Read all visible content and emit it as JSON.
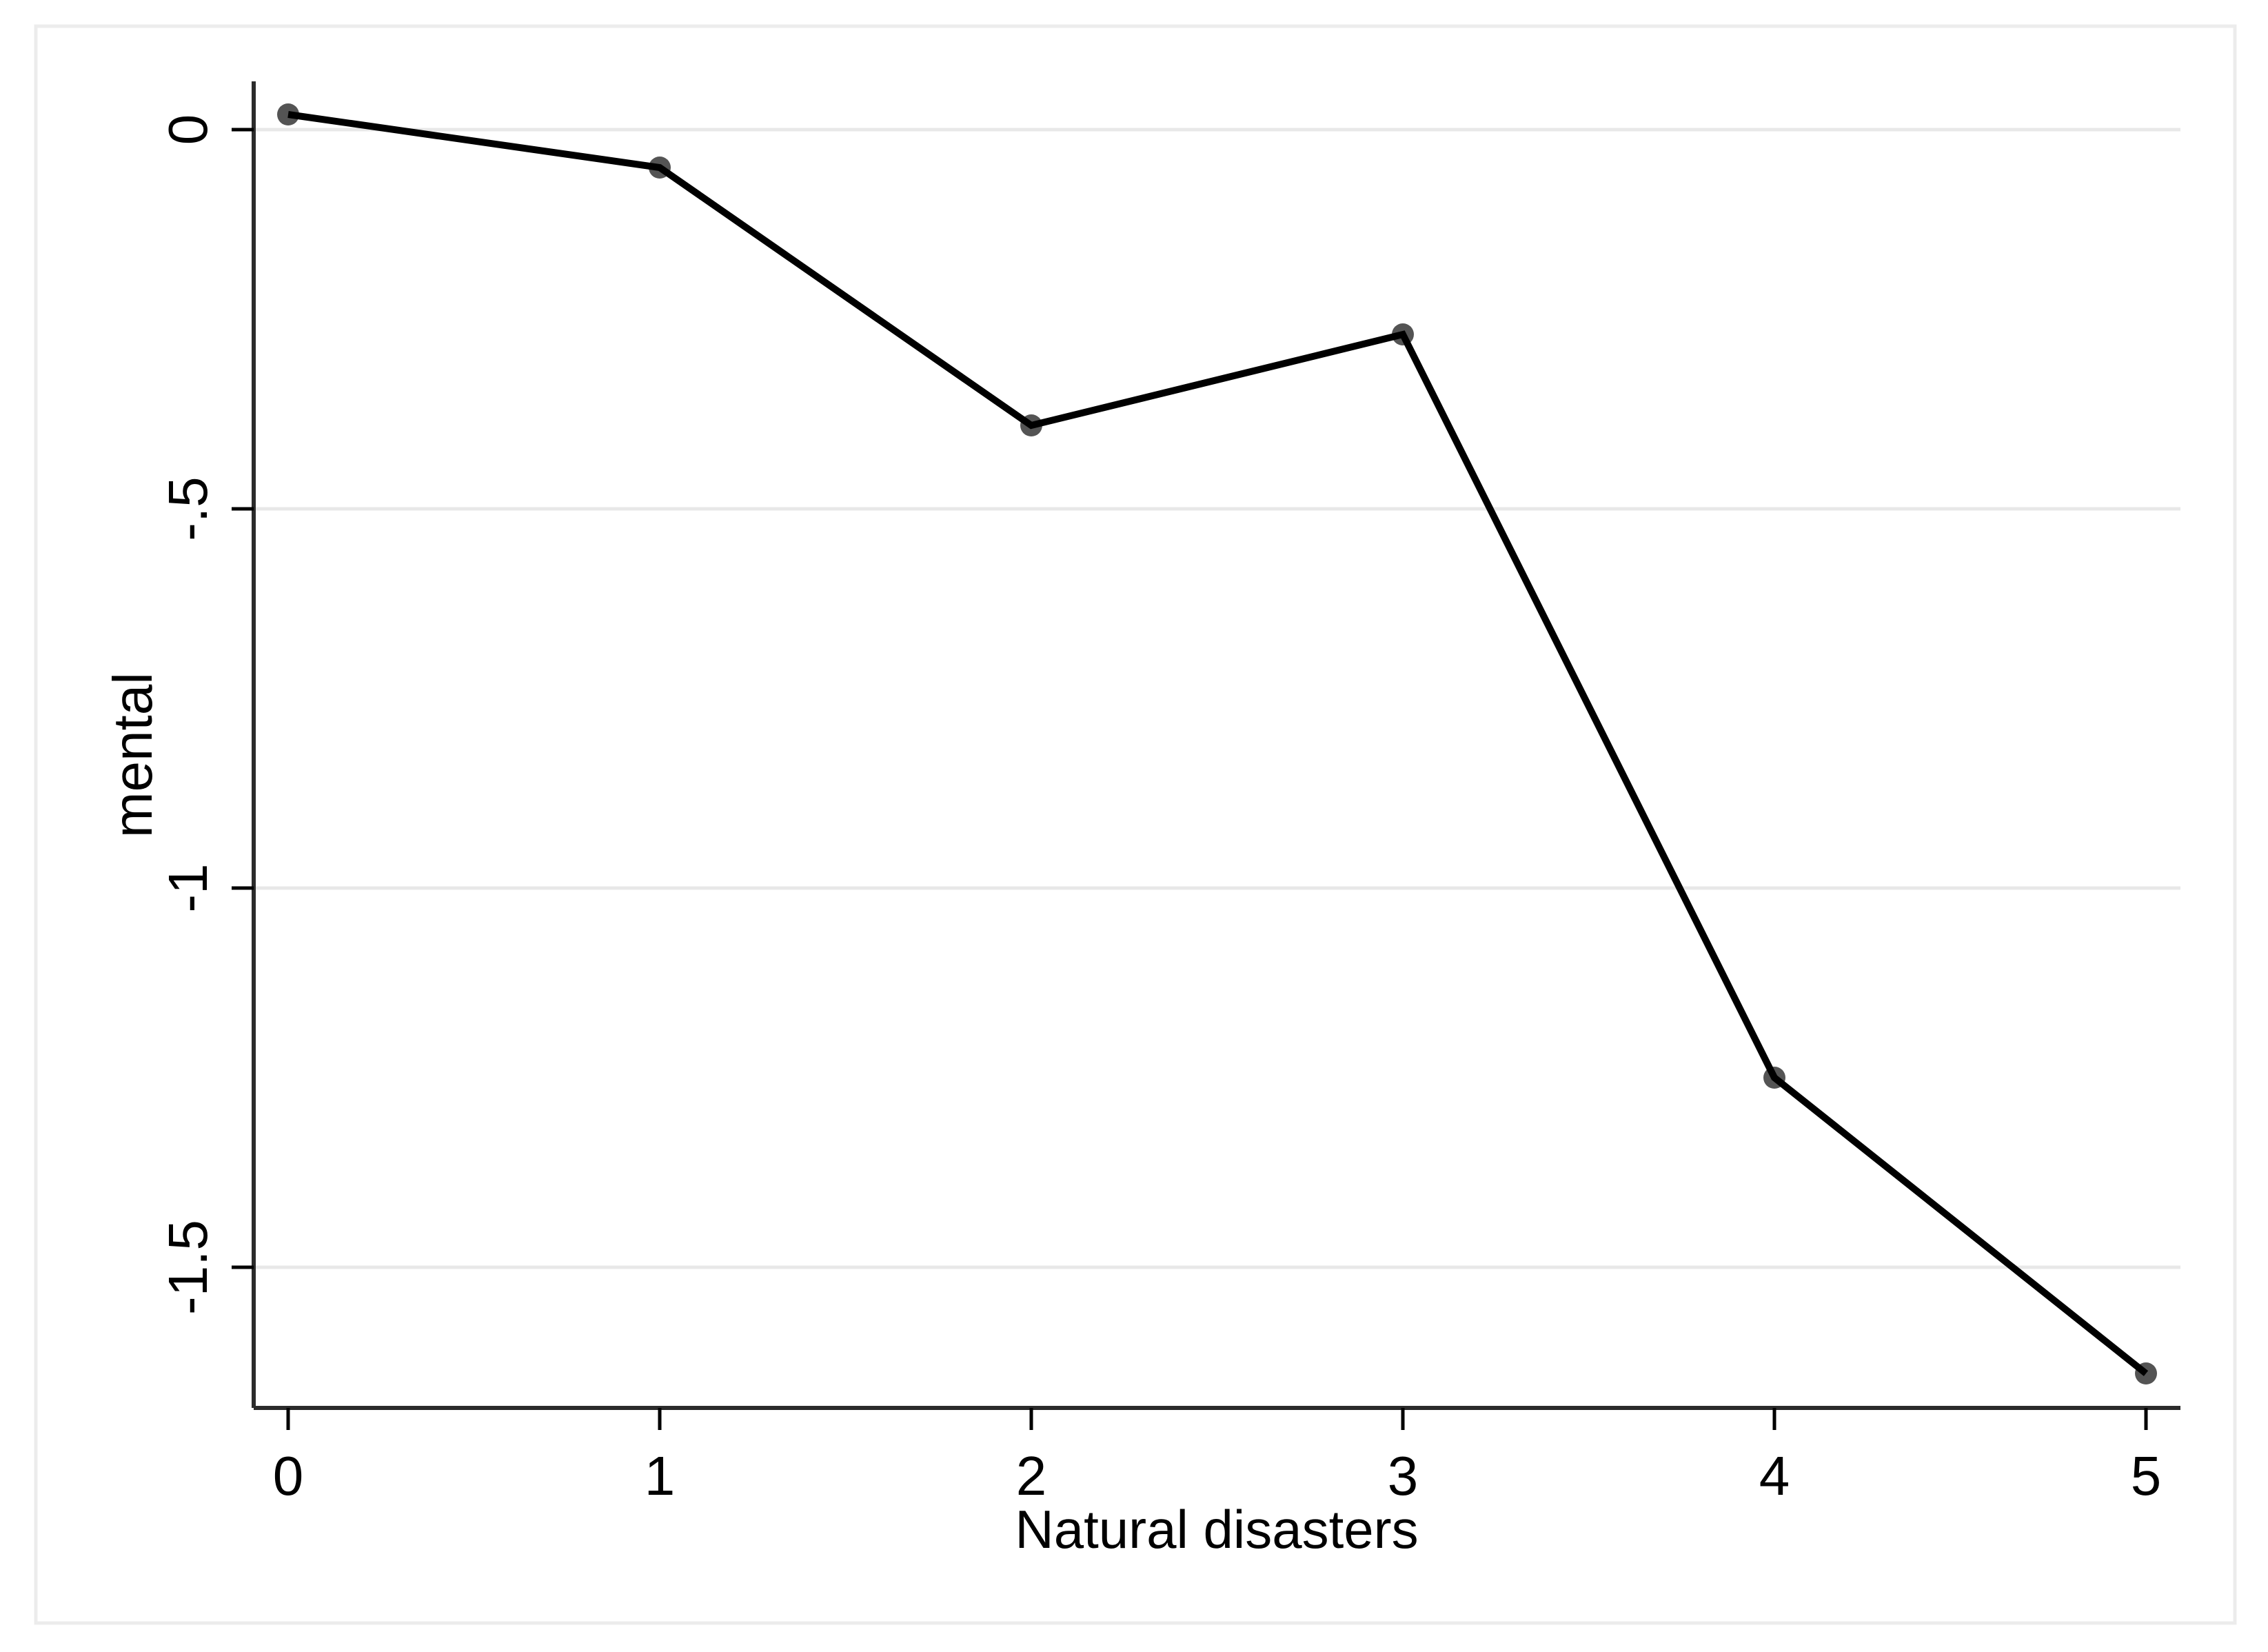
{
  "figure": {
    "background": "#ffffff",
    "frame_color": "#ececec"
  },
  "chart_data": {
    "type": "line",
    "title": "",
    "xlabel": "Natural disasters",
    "ylabel": "mental",
    "x": [
      0,
      1,
      2,
      3,
      4,
      5
    ],
    "series": [
      {
        "name": "mental",
        "values": [
          0.02,
          -0.05,
          -0.39,
          -0.27,
          -1.25,
          -1.64
        ],
        "line_color": "#000000",
        "marker": "circle",
        "marker_color": "#545454"
      }
    ],
    "xtick_labels": [
      "0",
      "1",
      "2",
      "3",
      "4",
      "5"
    ],
    "ytick_values": [
      0,
      -0.5,
      -1,
      -1.5
    ],
    "ytick_labels": [
      "0",
      "-.5",
      "-1",
      "-1.5"
    ],
    "xlim": [
      0,
      5
    ],
    "ylim": [
      -1.69,
      0.06
    ],
    "grid": "horizontal",
    "grid_color": "#e8e8e8",
    "axis_color": "#2b2b2b",
    "tick_color": "#000000",
    "text_color": "#000000",
    "legend": "none"
  }
}
